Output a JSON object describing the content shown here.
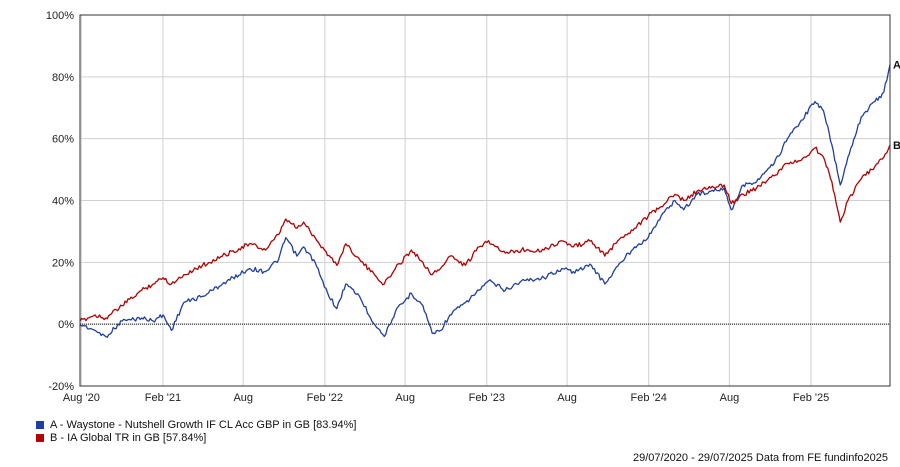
{
  "chart_data": {
    "type": "line",
    "x_ticks": [
      "Aug '20",
      "Feb '21",
      "Aug",
      "Feb '22",
      "Aug",
      "Feb '23",
      "Aug",
      "Feb '24",
      "Aug",
      "Feb '25"
    ],
    "y_ticks": [
      "100%",
      "80%",
      "60%",
      "40%",
      "20%",
      "0%",
      "-20%"
    ],
    "ylim": [
      -20,
      100
    ],
    "xlim": [
      "2020-07-29",
      "2025-07-29"
    ],
    "grid": true,
    "series": [
      {
        "name": "A - Waystone - Nutshell Growth IF CL Acc GBP in GB [83.94%]",
        "end_label": "A",
        "color": "#1f3f9e",
        "points": [
          [
            "2020-07-29",
            0
          ],
          [
            "2020-09-01",
            -2
          ],
          [
            "2020-09-25",
            -4
          ],
          [
            "2020-11-01",
            1
          ],
          [
            "2020-12-15",
            2
          ],
          [
            "2021-01-10",
            1
          ],
          [
            "2021-02-01",
            3
          ],
          [
            "2021-02-20",
            -2
          ],
          [
            "2021-03-20",
            7
          ],
          [
            "2021-05-01",
            9
          ],
          [
            "2021-06-15",
            13
          ],
          [
            "2021-08-15",
            18
          ],
          [
            "2021-09-20",
            17
          ],
          [
            "2021-10-20",
            21
          ],
          [
            "2021-11-05",
            28
          ],
          [
            "2021-11-30",
            22
          ],
          [
            "2021-12-15",
            25
          ],
          [
            "2022-01-10",
            20
          ],
          [
            "2022-01-31",
            12
          ],
          [
            "2022-02-28",
            5
          ],
          [
            "2022-03-20",
            13
          ],
          [
            "2022-04-20",
            9
          ],
          [
            "2022-05-15",
            2
          ],
          [
            "2022-06-15",
            -4
          ],
          [
            "2022-07-10",
            4
          ],
          [
            "2022-08-15",
            10
          ],
          [
            "2022-09-10",
            6
          ],
          [
            "2022-10-01",
            -3
          ],
          [
            "2022-10-20",
            -2
          ],
          [
            "2022-11-10",
            3
          ],
          [
            "2022-12-15",
            7
          ],
          [
            "2023-01-15",
            11
          ],
          [
            "2023-02-05",
            14
          ],
          [
            "2023-03-15",
            11
          ],
          [
            "2023-04-20",
            14
          ],
          [
            "2023-06-10",
            15
          ],
          [
            "2023-07-20",
            18
          ],
          [
            "2023-08-15",
            17
          ],
          [
            "2023-09-25",
            19
          ],
          [
            "2023-10-25",
            13
          ],
          [
            "2023-11-30",
            20
          ],
          [
            "2023-12-31",
            25
          ],
          [
            "2024-01-31",
            28
          ],
          [
            "2024-02-29",
            35
          ],
          [
            "2024-03-31",
            40
          ],
          [
            "2024-04-20",
            37
          ],
          [
            "2024-05-20",
            42
          ],
          [
            "2024-06-20",
            43
          ],
          [
            "2024-07-20",
            44
          ],
          [
            "2024-08-05",
            37
          ],
          [
            "2024-09-01",
            45
          ],
          [
            "2024-10-01",
            46
          ],
          [
            "2024-11-10",
            52
          ],
          [
            "2024-12-10",
            60
          ],
          [
            "2025-01-10",
            66
          ],
          [
            "2025-02-10",
            72
          ],
          [
            "2025-03-01",
            69
          ],
          [
            "2025-03-20",
            58
          ],
          [
            "2025-04-08",
            45
          ],
          [
            "2025-04-25",
            54
          ],
          [
            "2025-05-25",
            67
          ],
          [
            "2025-06-25",
            72
          ],
          [
            "2025-07-15",
            75
          ],
          [
            "2025-07-29",
            84
          ]
        ]
      },
      {
        "name": "B - IA Global TR in GB [57.84%]",
        "end_label": "B",
        "color": "#b30000",
        "points": [
          [
            "2020-07-29",
            1
          ],
          [
            "2020-09-01",
            3
          ],
          [
            "2020-09-25",
            2
          ],
          [
            "2020-11-01",
            6
          ],
          [
            "2020-12-15",
            11
          ],
          [
            "2021-01-10",
            13
          ],
          [
            "2021-02-01",
            15
          ],
          [
            "2021-02-20",
            13
          ],
          [
            "2021-03-20",
            16
          ],
          [
            "2021-05-01",
            19
          ],
          [
            "2021-06-15",
            22
          ],
          [
            "2021-08-15",
            26
          ],
          [
            "2021-09-20",
            24
          ],
          [
            "2021-10-20",
            29
          ],
          [
            "2021-11-05",
            34
          ],
          [
            "2021-11-30",
            31
          ],
          [
            "2021-12-15",
            33
          ],
          [
            "2022-01-10",
            28
          ],
          [
            "2022-01-31",
            24
          ],
          [
            "2022-02-28",
            19
          ],
          [
            "2022-03-20",
            26
          ],
          [
            "2022-04-20",
            21
          ],
          [
            "2022-05-15",
            17
          ],
          [
            "2022-06-15",
            13
          ],
          [
            "2022-07-10",
            18
          ],
          [
            "2022-08-15",
            24
          ],
          [
            "2022-09-10",
            20
          ],
          [
            "2022-10-01",
            16
          ],
          [
            "2022-10-20",
            18
          ],
          [
            "2022-11-10",
            22
          ],
          [
            "2022-12-15",
            19
          ],
          [
            "2023-01-15",
            25
          ],
          [
            "2023-02-05",
            27
          ],
          [
            "2023-03-15",
            23
          ],
          [
            "2023-04-20",
            24
          ],
          [
            "2023-06-10",
            24
          ],
          [
            "2023-07-20",
            27
          ],
          [
            "2023-08-15",
            25
          ],
          [
            "2023-09-25",
            27
          ],
          [
            "2023-10-25",
            22
          ],
          [
            "2023-11-30",
            28
          ],
          [
            "2023-12-31",
            31
          ],
          [
            "2024-01-31",
            35
          ],
          [
            "2024-02-29",
            38
          ],
          [
            "2024-03-31",
            42
          ],
          [
            "2024-04-20",
            40
          ],
          [
            "2024-05-20",
            43
          ],
          [
            "2024-06-20",
            44
          ],
          [
            "2024-07-20",
            45
          ],
          [
            "2024-08-05",
            39
          ],
          [
            "2024-09-01",
            42
          ],
          [
            "2024-10-01",
            44
          ],
          [
            "2024-11-10",
            48
          ],
          [
            "2024-12-10",
            52
          ],
          [
            "2025-01-10",
            53
          ],
          [
            "2025-02-10",
            57
          ],
          [
            "2025-03-01",
            54
          ],
          [
            "2025-03-20",
            46
          ],
          [
            "2025-04-08",
            33
          ],
          [
            "2025-04-25",
            40
          ],
          [
            "2025-05-25",
            47
          ],
          [
            "2025-06-25",
            51
          ],
          [
            "2025-07-15",
            54
          ],
          [
            "2025-07-29",
            58
          ]
        ]
      }
    ]
  },
  "legend": {
    "a_label": "A - Waystone - Nutshell Growth IF CL Acc GBP in GB [83.94%]",
    "b_label": "B - IA Global TR in GB [57.84%]",
    "a_color": "#1f3f9e",
    "b_color": "#b30000"
  },
  "footer": {
    "text": "29/07/2020 - 29/07/2025 Data from FE fundinfo2025"
  }
}
